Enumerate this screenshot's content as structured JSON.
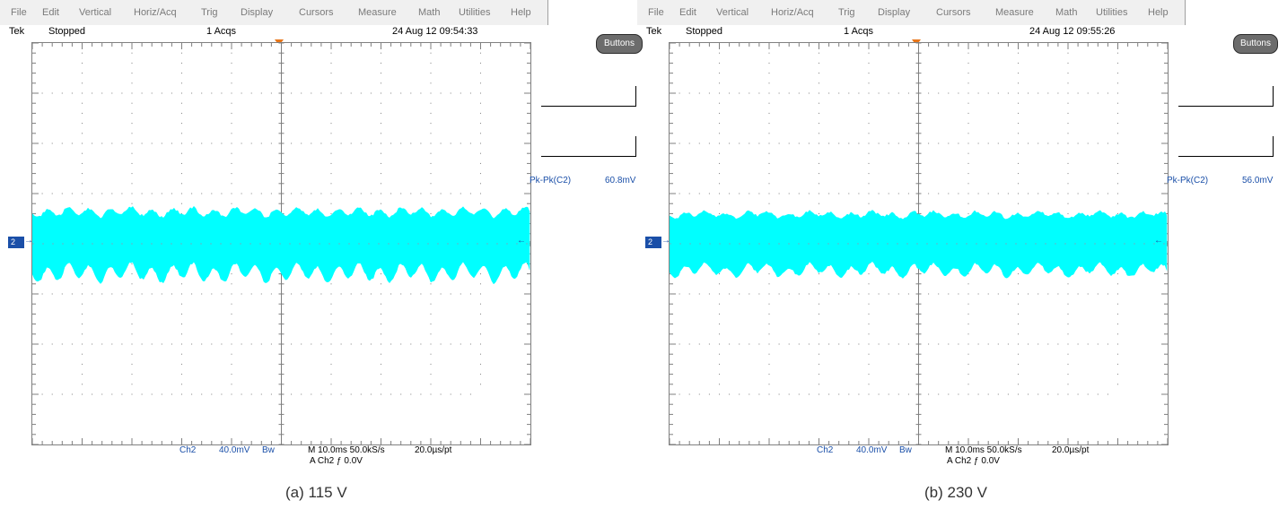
{
  "menu": [
    "File",
    "Edit",
    "Vertical",
    "Horiz/Acq",
    "Trig",
    "Display",
    "Cursors",
    "Measure",
    "Math",
    "Utilities",
    "Help"
  ],
  "colors": {
    "trace": "#00ffff",
    "channel": "#1a4fa8",
    "trigger": "#e8761a",
    "grid": "#7f7f7f"
  },
  "panels": [
    {
      "brand": "Tek",
      "state": "Stopped",
      "acqs": "1 Acqs",
      "datetime": "24 Aug 12 09:54:33",
      "buttons_label": "Buttons",
      "meas_name": "Pk-Pk(C2)",
      "meas_value": "60.8mV",
      "ch_marker": "2",
      "ch_label": "Ch2",
      "volts_div": "40.0mV",
      "bw_flag": "Bw",
      "timebase": "M 10.0ms 50.0kS/s",
      "sample_interval": "20.0µs/pt",
      "trig_line": "A  Ch2  ƒ  0.0V",
      "caption": "(a) 115 V",
      "trace": {
        "center_div": 4.0,
        "envelope_div": 1.2,
        "ripple_cycles": 24,
        "ripple_depth": 0.25
      }
    },
    {
      "brand": "Tek",
      "state": "Stopped",
      "acqs": "1 Acqs",
      "datetime": "24 Aug 12 09:55:26",
      "buttons_label": "Buttons",
      "meas_name": "Pk-Pk(C2)",
      "meas_value": "56.0mV",
      "ch_marker": "2",
      "ch_label": "Ch2",
      "volts_div": "40.0mV",
      "bw_flag": "Bw",
      "timebase": "M 10.0ms 50.0kS/s",
      "sample_interval": "20.0µs/pt",
      "trig_line": "A  Ch2  ƒ  0.0V",
      "caption": "(b) 230 V",
      "trace": {
        "center_div": 4.0,
        "envelope_div": 1.1,
        "ripple_cycles": 24,
        "ripple_depth": 0.18
      }
    }
  ]
}
